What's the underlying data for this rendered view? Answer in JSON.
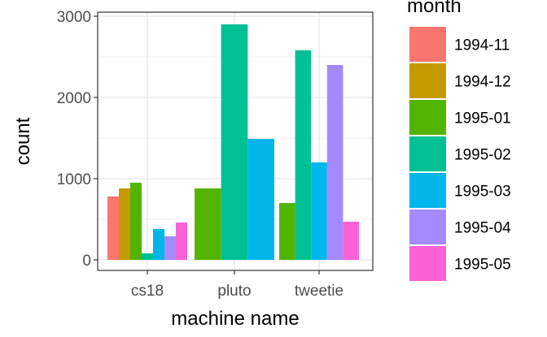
{
  "chart_data": {
    "type": "bar",
    "title": "",
    "xlabel": "machine name",
    "ylabel": "count",
    "categories": [
      "cs18",
      "pluto",
      "tweetie"
    ],
    "ylim": [
      0,
      3000
    ],
    "yticks": [
      0,
      1000,
      2000,
      3000
    ],
    "grid": true,
    "legend": {
      "title": "month",
      "placement": "right"
    },
    "series": [
      {
        "name": "1994-11",
        "color": "#F8766D",
        "values": [
          780,
          null,
          null
        ]
      },
      {
        "name": "1994-12",
        "color": "#C49A00",
        "values": [
          880,
          null,
          null
        ]
      },
      {
        "name": "1995-01",
        "color": "#53B400",
        "values": [
          950,
          880,
          700
        ]
      },
      {
        "name": "1995-02",
        "color": "#00C094",
        "values": [
          80,
          2900,
          2580
        ]
      },
      {
        "name": "1995-03",
        "color": "#00B6EB",
        "values": [
          380,
          1490,
          1200
        ]
      },
      {
        "name": "1995-04",
        "color": "#A58AFF",
        "values": [
          290,
          null,
          2400
        ]
      },
      {
        "name": "1995-05",
        "color": "#FB61D7",
        "values": [
          460,
          null,
          470
        ]
      }
    ]
  }
}
